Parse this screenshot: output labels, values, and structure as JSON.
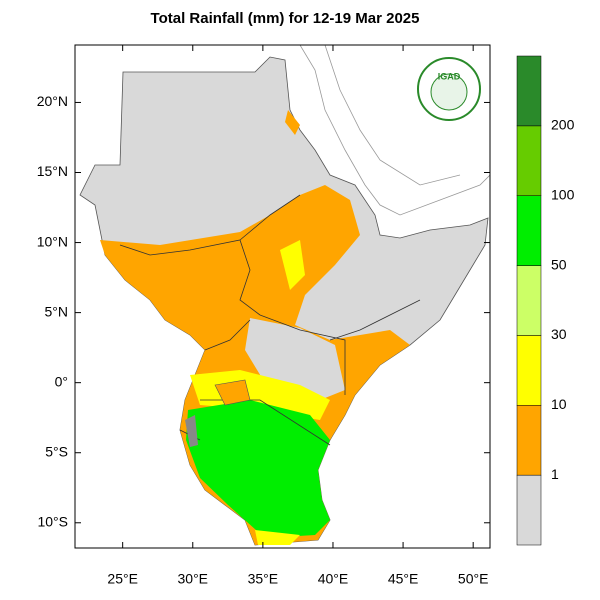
{
  "title": "Total Rainfall (mm) for 12-19 Mar 2025",
  "logo": "IGAD",
  "map": {
    "xlim": [
      21.6,
      51.2
    ],
    "ylim": [
      -11.8,
      24.1
    ],
    "xticks": [
      {
        "value": 25,
        "label": "25°E"
      },
      {
        "value": 30,
        "label": "30°E"
      },
      {
        "value": 35,
        "label": "35°E"
      },
      {
        "value": 40,
        "label": "40°E"
      },
      {
        "value": 45,
        "label": "45°E"
      },
      {
        "value": 50,
        "label": "50°E"
      }
    ],
    "yticks": [
      {
        "value": 20,
        "label": "20°N"
      },
      {
        "value": 15,
        "label": "15°N"
      },
      {
        "value": 10,
        "label": "10°N"
      },
      {
        "value": 5,
        "label": "5°N"
      },
      {
        "value": 0,
        "label": "0°"
      },
      {
        "value": -5,
        "label": "5°S"
      },
      {
        "value": -10,
        "label": "10°S"
      }
    ]
  },
  "legend": {
    "levels": [
      1,
      10,
      30,
      50,
      100,
      200
    ],
    "colors": [
      "#d9d9d9",
      "#ffa500",
      "#ffff00",
      "#ccff66",
      "#00ee00",
      "#66cc00",
      "#2a8a2a"
    ]
  }
}
